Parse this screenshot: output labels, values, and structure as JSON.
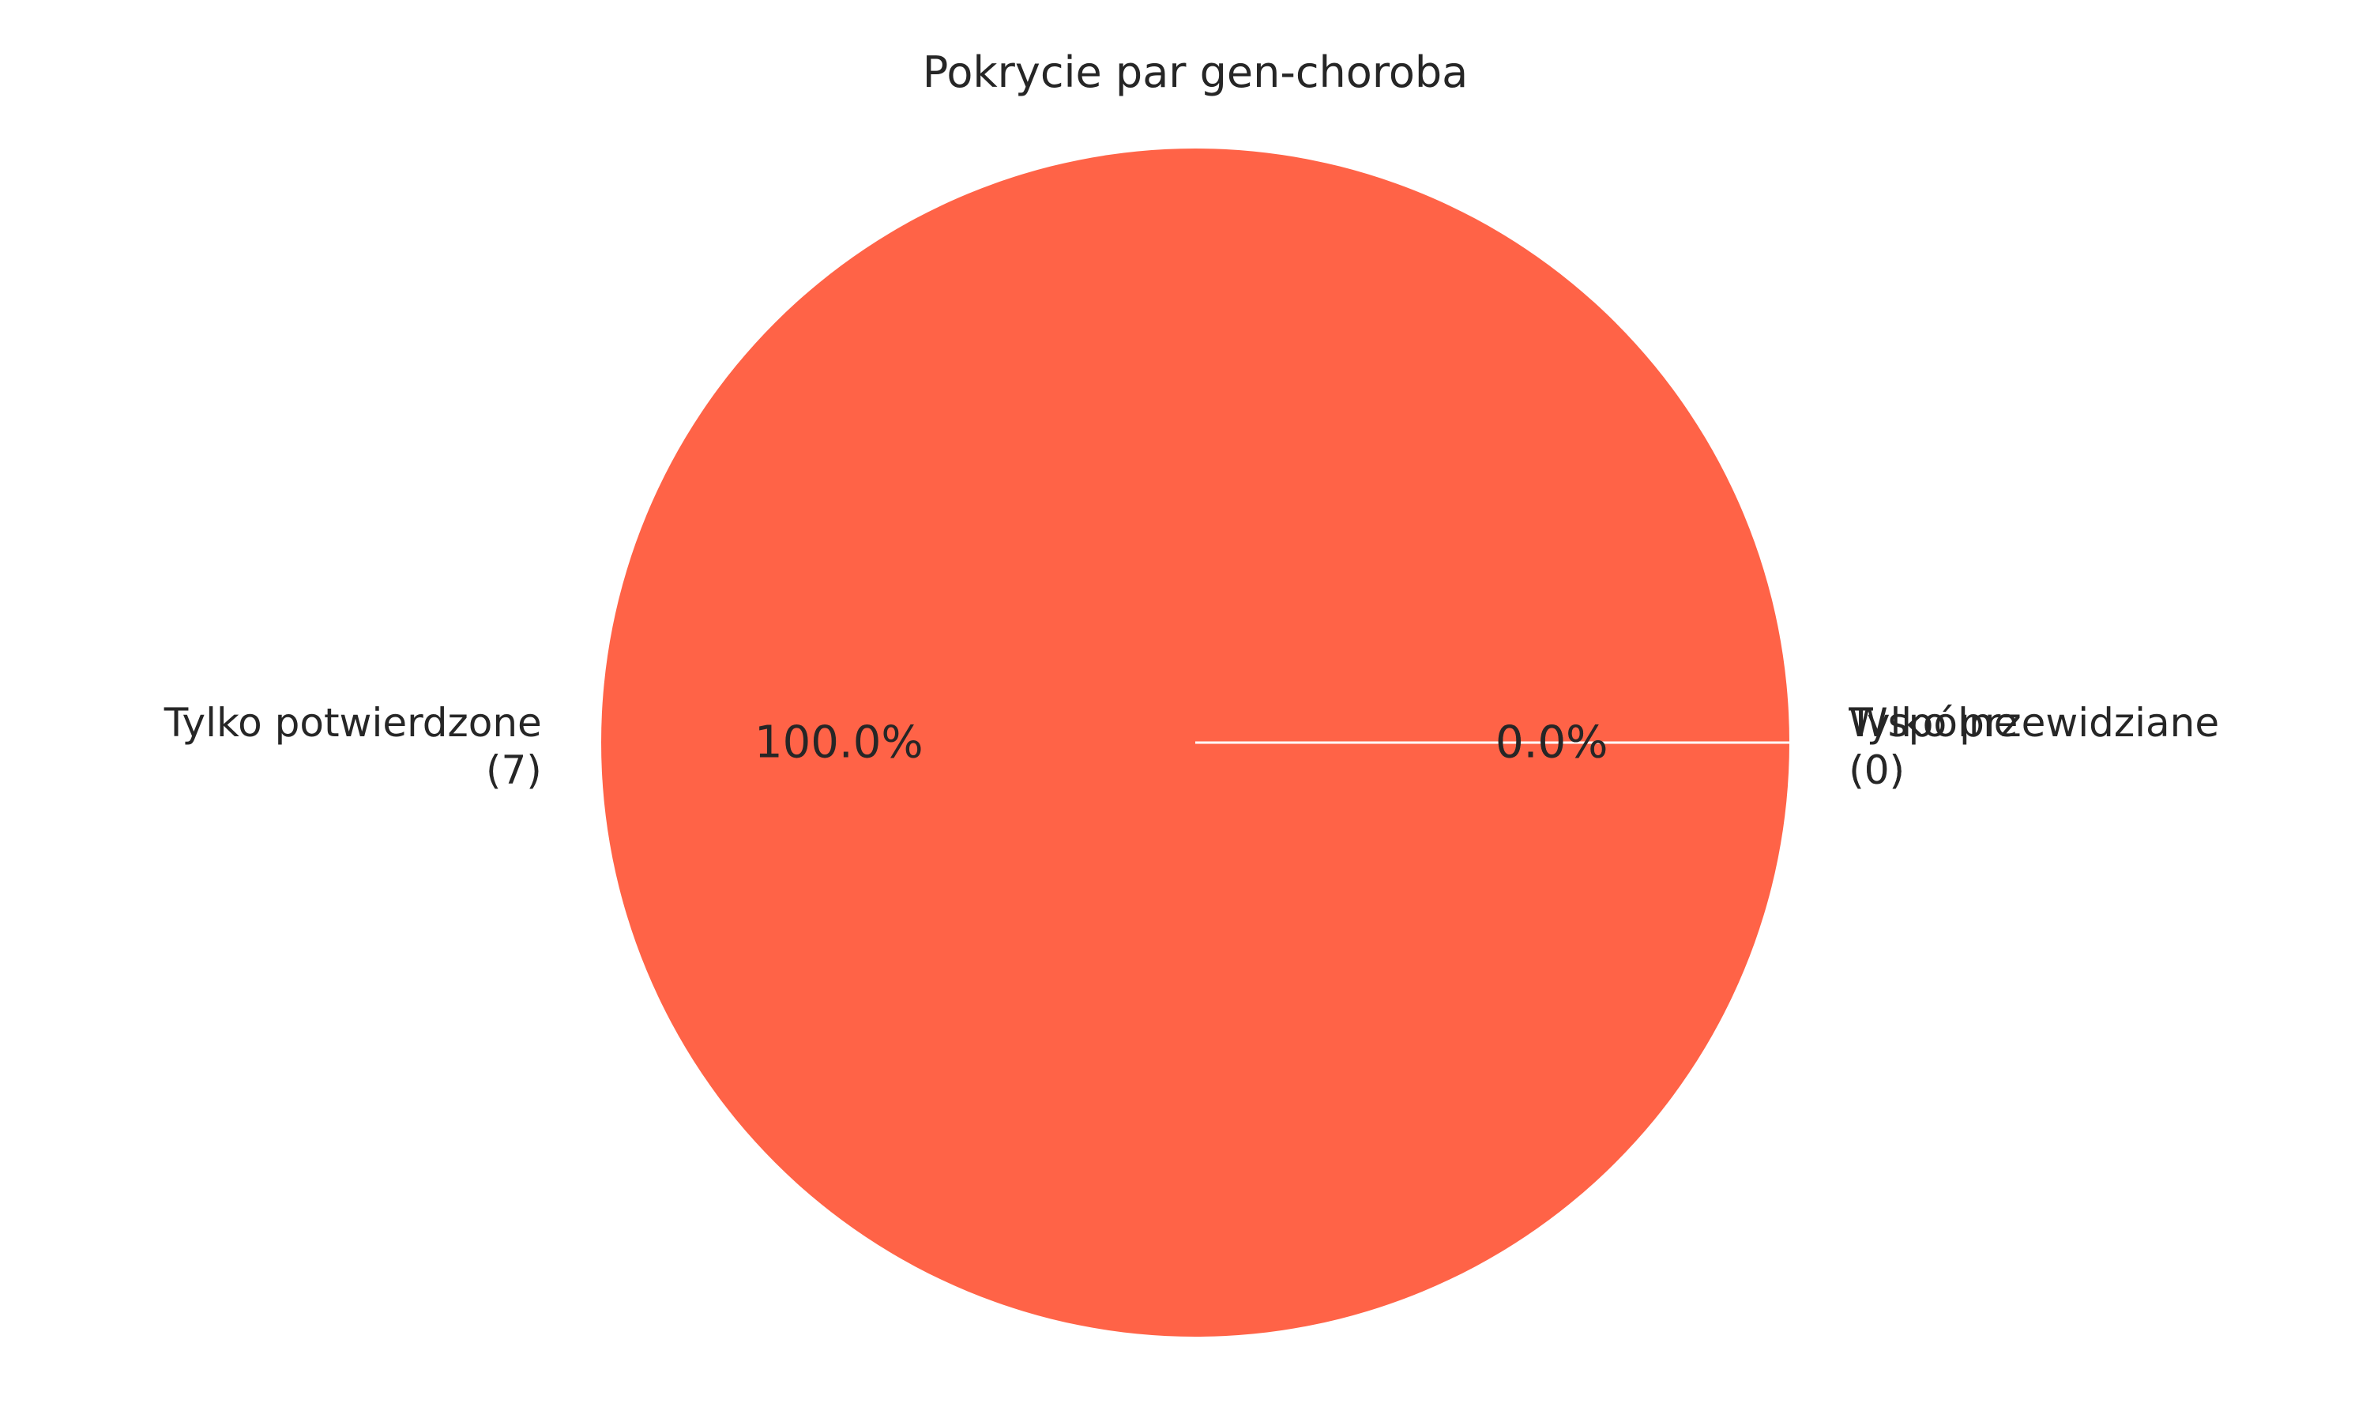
{
  "chart_data": {
    "type": "pie",
    "title": "Pokrycie par gen-choroba",
    "slices": [
      {
        "label": "Tylko potwierdzone",
        "count_label": "(7)",
        "value": 7,
        "pct_label": "100.0%",
        "color": "#ff6347"
      },
      {
        "label": "Wspólne",
        "count_label": "(0)",
        "value": 0,
        "pct_label": "0.0%",
        "color": "#ffa07a"
      },
      {
        "label": "Tylko przewidziane",
        "count_label": "(0)",
        "value": 0,
        "pct_label": "0.0%",
        "color": "#87cefa"
      }
    ],
    "start_angle_deg": 0,
    "direction": "counterclockwise",
    "wedge_edge_color": "#ffffff",
    "legend": "none"
  }
}
